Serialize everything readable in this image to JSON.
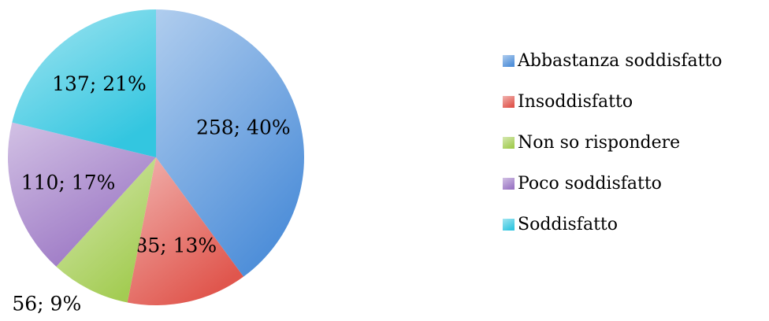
{
  "chart_data": {
    "type": "pie",
    "categories": [
      "Abbastanza soddisfatto",
      "Insoddisfatto",
      "Non so rispondere",
      "Poco soddisfatto",
      "Soddisfatto"
    ],
    "values": [
      258,
      85,
      56,
      110,
      137
    ],
    "value_labels": [
      "258; 40%",
      "85; 13%",
      "56; 9%",
      "110; 17%",
      "137; 21%"
    ],
    "colors": [
      "#4f8fd9",
      "#e0564d",
      "#a3cc52",
      "#9b76c4",
      "#33c6e0"
    ]
  }
}
